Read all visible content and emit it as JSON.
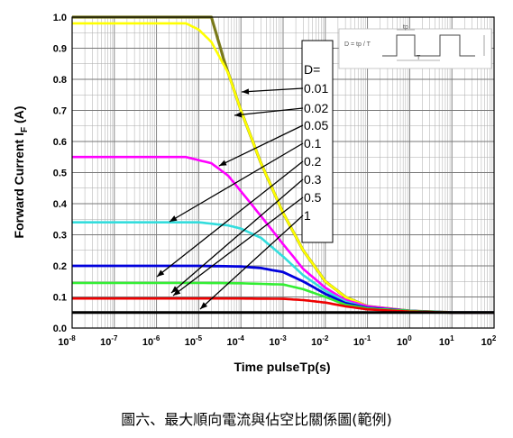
{
  "caption": "圖六、最大順向電流與佔空比關係圖(範例)",
  "chart_data": {
    "type": "line",
    "xlabel": "Time pulseTp(s)",
    "ylabel_main": "Forward Current I",
    "ylabel_sub": "F",
    "ylabel_tail": " (A)",
    "xscale": "log",
    "xlim": [
      1e-08,
      100
    ],
    "ylim": [
      0,
      1.0
    ],
    "grid": true,
    "x_ticks": [
      {
        "base": "10",
        "exp": "-8"
      },
      {
        "base": "10",
        "exp": "-7"
      },
      {
        "base": "10",
        "exp": "-6"
      },
      {
        "base": "10",
        "exp": "-5"
      },
      {
        "base": "10",
        "exp": "-4"
      },
      {
        "base": "10",
        "exp": "-3"
      },
      {
        "base": "10",
        "exp": "-2"
      },
      {
        "base": "10",
        "exp": "-1"
      },
      {
        "base": "10",
        "exp": "0"
      },
      {
        "base": "10",
        "exp": "1"
      },
      {
        "base": "10",
        "exp": "2"
      }
    ],
    "y_ticks": [
      "0.0",
      "0.1",
      "0.2",
      "0.3",
      "0.4",
      "0.5",
      "0.6",
      "0.7",
      "0.8",
      "0.9",
      "1.0"
    ],
    "legend": {
      "title": "D=",
      "entries": [
        "0.01",
        "0.02",
        "0.05",
        "0.1",
        "0.2",
        "0.3",
        "0.5",
        "1"
      ]
    },
    "inset": {
      "formula": "D = tp / T",
      "label_tp": "tp",
      "label_T": "T"
    },
    "series": [
      {
        "color": "#7a7a1a",
        "width": 3.2,
        "points": [
          [
            1e-08,
            1.0
          ],
          [
            2e-05,
            1.0
          ],
          [
            4e-05,
            0.86
          ],
          [
            0.0001,
            0.7
          ],
          [
            0.0003,
            0.53
          ],
          [
            0.001,
            0.37
          ],
          [
            0.003,
            0.25
          ],
          [
            0.01,
            0.15
          ],
          [
            0.03,
            0.1
          ],
          [
            0.1,
            0.07
          ],
          [
            1,
            0.055
          ],
          [
            10,
            0.05
          ],
          [
            100,
            0.05
          ]
        ]
      },
      {
        "color": "#ffff00",
        "width": 2.6,
        "points": [
          [
            1e-08,
            0.98
          ],
          [
            5e-06,
            0.98
          ],
          [
            1e-05,
            0.96
          ],
          [
            2e-05,
            0.92
          ],
          [
            5e-05,
            0.82
          ],
          [
            0.0001,
            0.7
          ],
          [
            0.0003,
            0.53
          ],
          [
            0.001,
            0.37
          ],
          [
            0.003,
            0.25
          ],
          [
            0.01,
            0.15
          ],
          [
            0.03,
            0.1
          ],
          [
            0.1,
            0.07
          ],
          [
            1,
            0.055
          ],
          [
            10,
            0.05
          ],
          [
            100,
            0.05
          ]
        ]
      },
      {
        "color": "#ff00ff",
        "width": 2.6,
        "points": [
          [
            1e-08,
            0.55
          ],
          [
            5e-06,
            0.55
          ],
          [
            2e-05,
            0.53
          ],
          [
            5e-05,
            0.49
          ],
          [
            0.0001,
            0.44
          ],
          [
            0.0003,
            0.36
          ],
          [
            0.001,
            0.27
          ],
          [
            0.003,
            0.19
          ],
          [
            0.01,
            0.13
          ],
          [
            0.03,
            0.09
          ],
          [
            0.1,
            0.07
          ],
          [
            1,
            0.055
          ],
          [
            10,
            0.05
          ],
          [
            100,
            0.05
          ]
        ]
      },
      {
        "color": "#33dddd",
        "width": 2.6,
        "points": [
          [
            1e-08,
            0.34
          ],
          [
            1e-05,
            0.34
          ],
          [
            5e-05,
            0.33
          ],
          [
            0.0001,
            0.32
          ],
          [
            0.0003,
            0.29
          ],
          [
            0.001,
            0.23
          ],
          [
            0.003,
            0.17
          ],
          [
            0.01,
            0.12
          ],
          [
            0.03,
            0.085
          ],
          [
            0.1,
            0.065
          ],
          [
            1,
            0.055
          ],
          [
            10,
            0.05
          ],
          [
            100,
            0.05
          ]
        ]
      },
      {
        "color": "#0000dd",
        "width": 2.8,
        "points": [
          [
            1e-08,
            0.2
          ],
          [
            1e-05,
            0.2
          ],
          [
            0.0001,
            0.198
          ],
          [
            0.0003,
            0.193
          ],
          [
            0.001,
            0.18
          ],
          [
            0.003,
            0.15
          ],
          [
            0.01,
            0.11
          ],
          [
            0.03,
            0.08
          ],
          [
            0.1,
            0.065
          ],
          [
            1,
            0.055
          ],
          [
            10,
            0.05
          ],
          [
            100,
            0.05
          ]
        ]
      },
      {
        "color": "#33ee33",
        "width": 2.6,
        "points": [
          [
            1e-08,
            0.145
          ],
          [
            1e-05,
            0.145
          ],
          [
            0.0001,
            0.144
          ],
          [
            0.001,
            0.14
          ],
          [
            0.003,
            0.125
          ],
          [
            0.01,
            0.1
          ],
          [
            0.03,
            0.075
          ],
          [
            0.1,
            0.063
          ],
          [
            1,
            0.055
          ],
          [
            10,
            0.05
          ],
          [
            100,
            0.05
          ]
        ]
      },
      {
        "color": "#ee0000",
        "width": 2.6,
        "points": [
          [
            1e-08,
            0.095
          ],
          [
            0.0001,
            0.095
          ],
          [
            0.001,
            0.094
          ],
          [
            0.003,
            0.09
          ],
          [
            0.01,
            0.082
          ],
          [
            0.03,
            0.07
          ],
          [
            0.1,
            0.06
          ],
          [
            1,
            0.053
          ],
          [
            10,
            0.05
          ],
          [
            100,
            0.05
          ]
        ]
      },
      {
        "color": "#000000",
        "width": 3.0,
        "points": [
          [
            1e-08,
            0.05
          ],
          [
            100,
            0.05
          ]
        ]
      }
    ]
  }
}
